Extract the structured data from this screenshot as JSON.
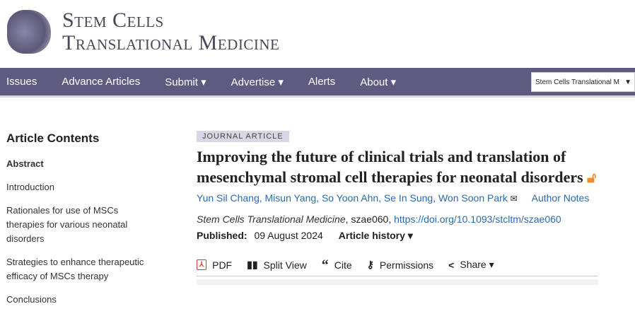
{
  "logo": {
    "line1": "Stem Cells",
    "line2": "Translational Medicine"
  },
  "nav": {
    "items": [
      "Issues",
      "Advance Articles",
      "Submit ▾",
      "Advertise ▾",
      "Alerts",
      "About ▾"
    ],
    "journal_select": "Stem Cells Translational M"
  },
  "sidebar": {
    "title": "Article Contents",
    "items": [
      "Abstract",
      "Introduction",
      "Rationales for use of MSCs therapies for various neonatal disorders",
      "Strategies to enhance therapeutic efficacy of MSCs therapy",
      "Conclusions"
    ]
  },
  "article": {
    "type": "JOURNAL ARTICLE",
    "title": "Improving the future of clinical trials and translation of mesenchymal stromal cell therapies for neonatal disorders",
    "authors": [
      "Yun Sil Chang",
      "Misun Yang",
      "So Yoon Ahn",
      "Se In Sung",
      "Won Soon Park"
    ],
    "author_notes": "Author Notes",
    "journal": "Stem Cells Translational Medicine",
    "article_id": ", szae060, ",
    "doi": "https://doi.org/10.1093/stcltm/szae060",
    "published_label": "Published:",
    "published_date": "09 August 2024",
    "history": "Article history ▾"
  },
  "tools": {
    "pdf": "PDF",
    "split": "Split View",
    "cite": "Cite",
    "permissions": "Permissions",
    "share": "Share ▾"
  },
  "colors": {
    "nav": "#5e5a80",
    "link": "#2a6ab0",
    "open_access": "#f08a24"
  }
}
